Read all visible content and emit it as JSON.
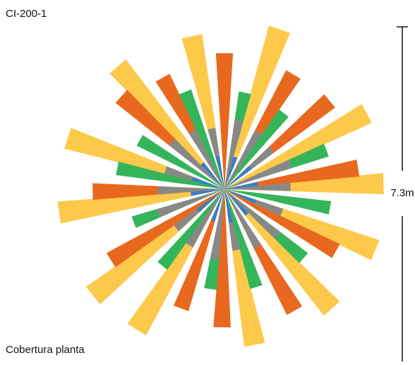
{
  "header": {
    "title": "CI-200-1"
  },
  "footer": {
    "caption": "Cobertura planta"
  },
  "scale_bar": {
    "label": "7.3m"
  }
}
